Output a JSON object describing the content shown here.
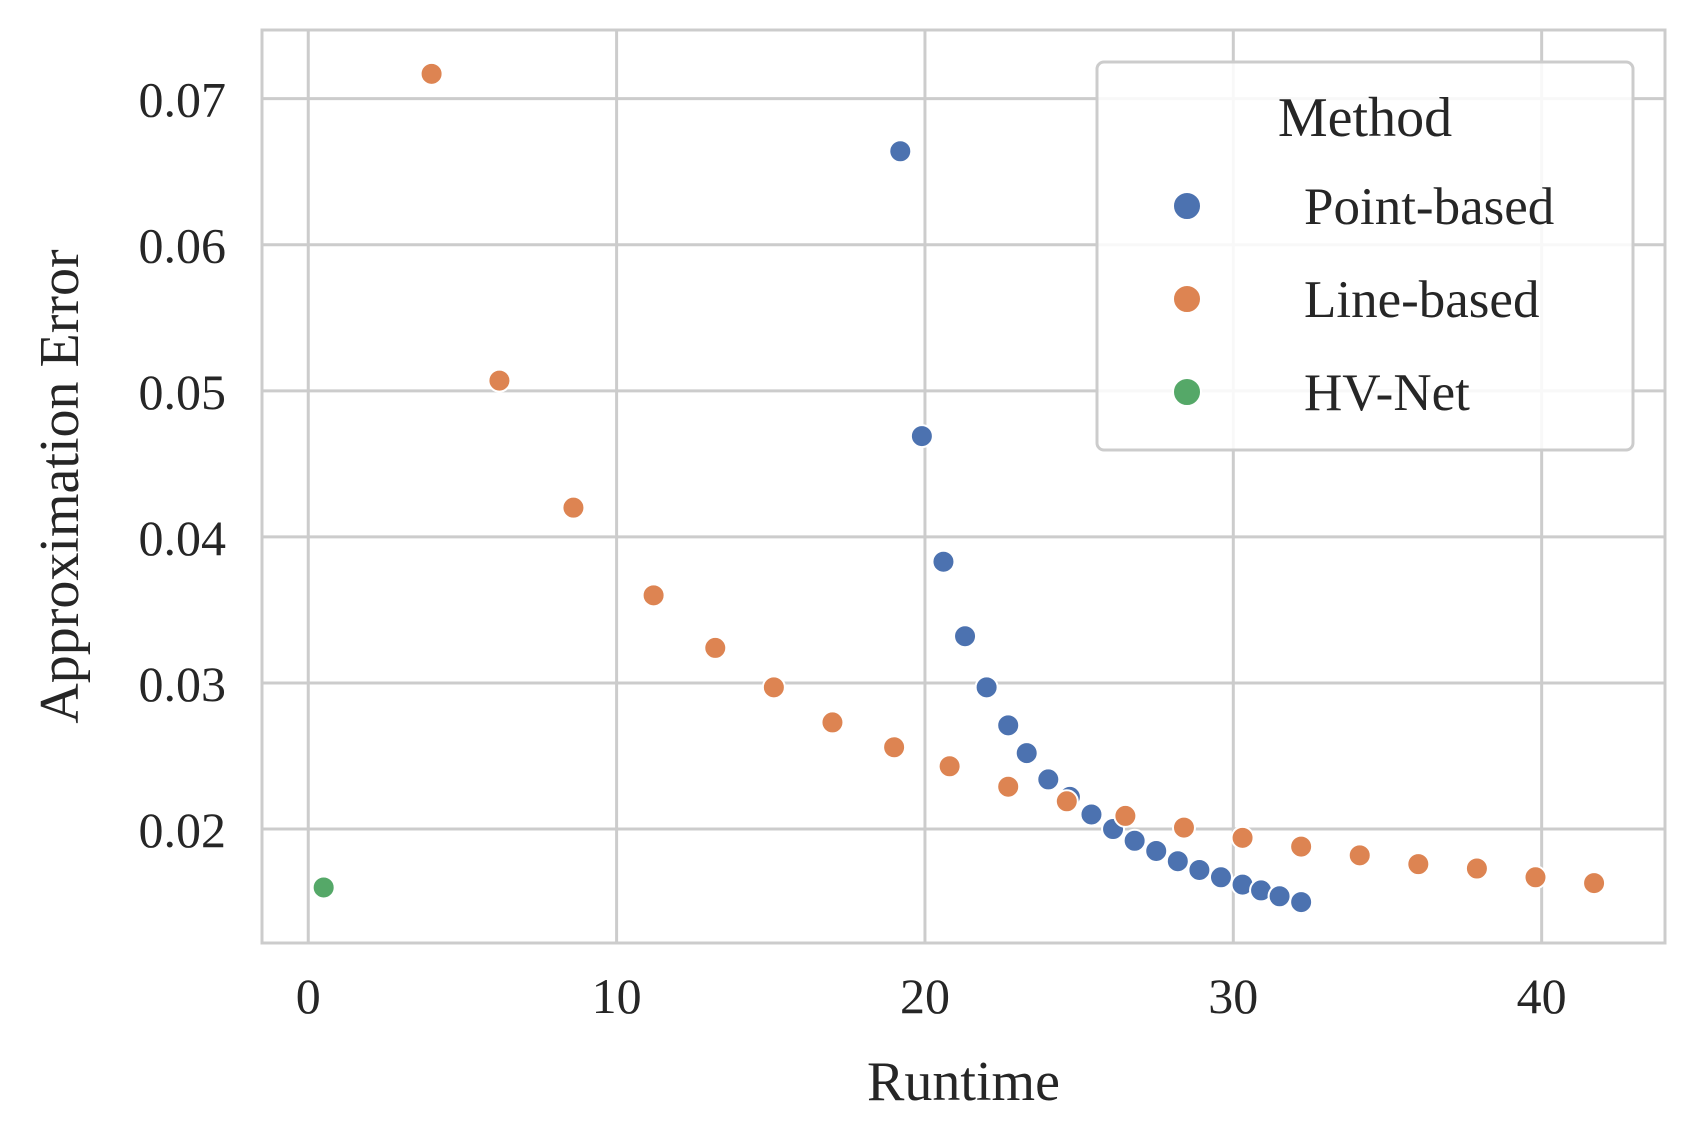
{
  "chart_data": {
    "type": "scatter",
    "title": "",
    "xlabel": "Runtime",
    "ylabel": "Approximation Error",
    "xlim": [
      -1.5,
      44
    ],
    "ylim": [
      0.0122,
      0.0747
    ],
    "x_ticks": [
      0,
      10,
      20,
      30,
      40
    ],
    "y_ticks": [
      0.02,
      0.03,
      0.04,
      0.05,
      0.06,
      0.07
    ],
    "x_tick_labels": [
      "0",
      "10",
      "20",
      "30",
      "40"
    ],
    "y_tick_labels": [
      "0.02",
      "0.03",
      "0.04",
      "0.05",
      "0.06",
      "0.07"
    ],
    "grid": true,
    "legend": {
      "title": "Method",
      "position": "top-right"
    },
    "series": [
      {
        "name": "Point-based",
        "color": "#4c72b0",
        "points": [
          [
            19.2,
            0.0664
          ],
          [
            19.9,
            0.0469
          ],
          [
            20.6,
            0.0383
          ],
          [
            21.3,
            0.0332
          ],
          [
            22.0,
            0.0297
          ],
          [
            22.7,
            0.0271
          ],
          [
            23.3,
            0.0252
          ],
          [
            24.0,
            0.0234
          ],
          [
            24.7,
            0.0222
          ],
          [
            25.4,
            0.021
          ],
          [
            26.1,
            0.02
          ],
          [
            26.8,
            0.0192
          ],
          [
            27.5,
            0.0185
          ],
          [
            28.2,
            0.0178
          ],
          [
            28.9,
            0.0172
          ],
          [
            29.6,
            0.0167
          ],
          [
            30.3,
            0.0162
          ],
          [
            30.9,
            0.0158
          ],
          [
            31.5,
            0.0154
          ],
          [
            32.2,
            0.015
          ]
        ]
      },
      {
        "name": "Line-based",
        "color": "#dd8452",
        "points": [
          [
            4.0,
            0.0717
          ],
          [
            6.2,
            0.0507
          ],
          [
            8.6,
            0.042
          ],
          [
            11.2,
            0.036
          ],
          [
            13.2,
            0.0324
          ],
          [
            15.1,
            0.0297
          ],
          [
            17.0,
            0.0273
          ],
          [
            19.0,
            0.0256
          ],
          [
            20.8,
            0.0243
          ],
          [
            22.7,
            0.0229
          ],
          [
            24.6,
            0.0219
          ],
          [
            26.5,
            0.0209
          ],
          [
            28.4,
            0.0201
          ],
          [
            30.3,
            0.0194
          ],
          [
            32.2,
            0.0188
          ],
          [
            34.1,
            0.0182
          ],
          [
            36.0,
            0.0176
          ],
          [
            37.9,
            0.0173
          ],
          [
            39.8,
            0.0167
          ],
          [
            41.7,
            0.0163
          ]
        ]
      },
      {
        "name": "HV-Net",
        "color": "#55a868",
        "points": [
          [
            0.5,
            0.016
          ]
        ]
      }
    ]
  }
}
